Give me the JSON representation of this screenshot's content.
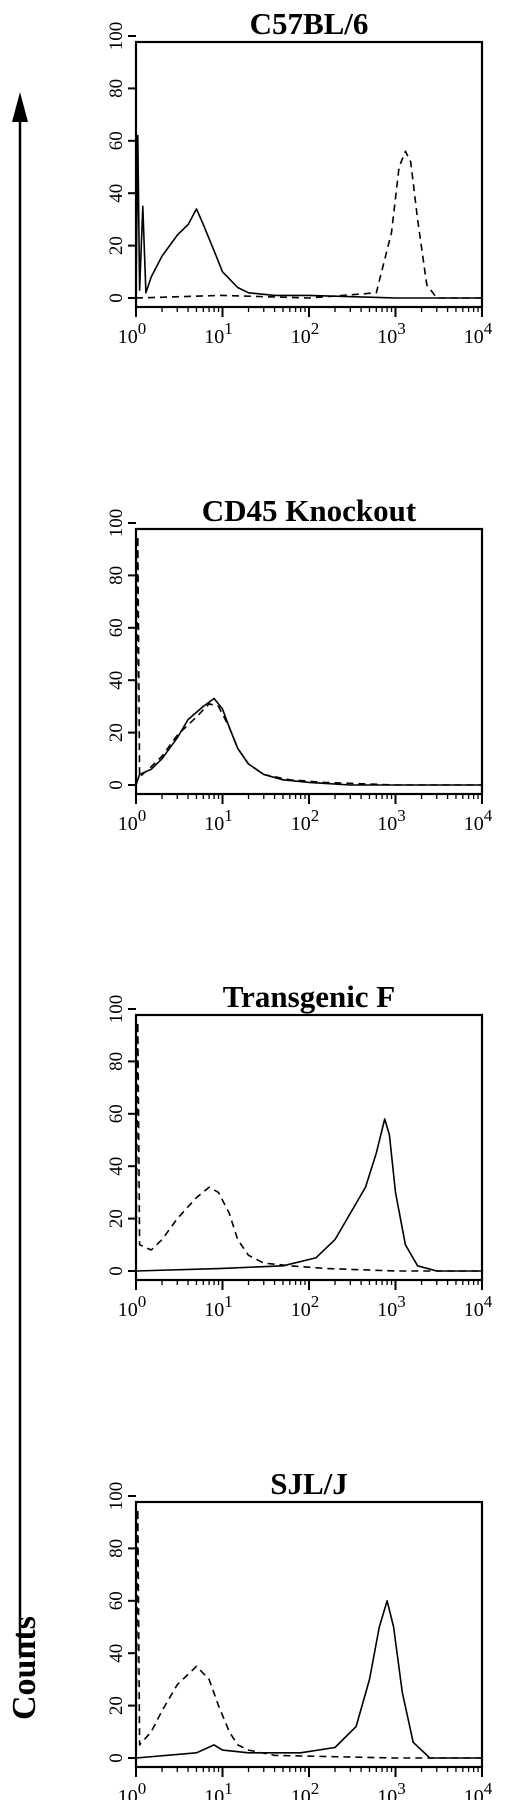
{
  "figure": {
    "ylabel": "Counts"
  },
  "chart_data": [
    {
      "type": "line",
      "title": "C57BL/6",
      "xscale": "log",
      "xlim": [
        1,
        10000
      ],
      "ylim": [
        0,
        100
      ],
      "xticks": [
        {
          "base": "10",
          "exp": "0"
        },
        {
          "base": "10",
          "exp": "1"
        },
        {
          "base": "10",
          "exp": "2"
        },
        {
          "base": "10",
          "exp": "3"
        },
        {
          "base": "10",
          "exp": "4"
        }
      ],
      "yticks": [
        "0",
        "20",
        "40",
        "60",
        "80",
        "100"
      ],
      "series": [
        {
          "style": "solid",
          "points": [
            [
              1,
              0
            ],
            [
              1.05,
              62
            ],
            [
              1.1,
              3
            ],
            [
              1.2,
              35
            ],
            [
              1.3,
              2
            ],
            [
              1.5,
              8
            ],
            [
              2,
              16
            ],
            [
              3,
              24
            ],
            [
              4,
              28
            ],
            [
              5,
              34
            ],
            [
              6,
              28
            ],
            [
              8,
              18
            ],
            [
              10,
              10
            ],
            [
              15,
              4
            ],
            [
              20,
              2
            ],
            [
              40,
              1
            ],
            [
              100,
              1
            ],
            [
              1000,
              0
            ],
            [
              10000,
              0
            ]
          ]
        },
        {
          "style": "dashed",
          "points": [
            [
              1,
              0
            ],
            [
              10,
              1
            ],
            [
              100,
              0
            ],
            [
              600,
              2
            ],
            [
              900,
              25
            ],
            [
              1100,
              50
            ],
            [
              1300,
              56
            ],
            [
              1500,
              52
            ],
            [
              1800,
              30
            ],
            [
              2300,
              5
            ],
            [
              3000,
              0
            ],
            [
              10000,
              0
            ]
          ]
        }
      ]
    },
    {
      "type": "line",
      "title": "CD45 Knockout",
      "xscale": "log",
      "xlim": [
        1,
        10000
      ],
      "ylim": [
        0,
        100
      ],
      "xticks": [
        {
          "base": "10",
          "exp": "0"
        },
        {
          "base": "10",
          "exp": "1"
        },
        {
          "base": "10",
          "exp": "2"
        },
        {
          "base": "10",
          "exp": "3"
        },
        {
          "base": "10",
          "exp": "4"
        }
      ],
      "yticks": [
        "0",
        "20",
        "40",
        "60",
        "80",
        "100"
      ],
      "series": [
        {
          "style": "solid",
          "points": [
            [
              1,
              0
            ],
            [
              1.1,
              4
            ],
            [
              1.5,
              6
            ],
            [
              2,
              10
            ],
            [
              3,
              18
            ],
            [
              4,
              25
            ],
            [
              6,
              30
            ],
            [
              8,
              33
            ],
            [
              10,
              29
            ],
            [
              12,
              22
            ],
            [
              15,
              14
            ],
            [
              20,
              8
            ],
            [
              30,
              4
            ],
            [
              50,
              2
            ],
            [
              100,
              1
            ],
            [
              300,
              0
            ],
            [
              1000,
              0
            ],
            [
              10000,
              0
            ]
          ]
        },
        {
          "style": "dashed",
          "points": [
            [
              1,
              0
            ],
            [
              1.05,
              95
            ],
            [
              1.1,
              3
            ],
            [
              1.5,
              7
            ],
            [
              2,
              11
            ],
            [
              3,
              19
            ],
            [
              5,
              26
            ],
            [
              7,
              31
            ],
            [
              9,
              30
            ],
            [
              12,
              22
            ],
            [
              15,
              14
            ],
            [
              20,
              8
            ],
            [
              30,
              4
            ],
            [
              60,
              2
            ],
            [
              150,
              1
            ],
            [
              1000,
              0
            ],
            [
              10000,
              0
            ]
          ]
        }
      ]
    },
    {
      "type": "line",
      "title": "Transgenic F",
      "xscale": "log",
      "xlim": [
        1,
        10000
      ],
      "ylim": [
        0,
        100
      ],
      "xticks": [
        {
          "base": "10",
          "exp": "0"
        },
        {
          "base": "10",
          "exp": "1"
        },
        {
          "base": "10",
          "exp": "2"
        },
        {
          "base": "10",
          "exp": "3"
        },
        {
          "base": "10",
          "exp": "4"
        }
      ],
      "yticks": [
        "0",
        "20",
        "40",
        "60",
        "80",
        "100"
      ],
      "series": [
        {
          "style": "solid",
          "points": [
            [
              1,
              0
            ],
            [
              10,
              1
            ],
            [
              50,
              2
            ],
            [
              120,
              5
            ],
            [
              200,
              12
            ],
            [
              300,
              22
            ],
            [
              450,
              32
            ],
            [
              600,
              45
            ],
            [
              750,
              58
            ],
            [
              850,
              52
            ],
            [
              1000,
              30
            ],
            [
              1300,
              10
            ],
            [
              1800,
              2
            ],
            [
              3000,
              0
            ],
            [
              10000,
              0
            ]
          ]
        },
        {
          "style": "dashed",
          "points": [
            [
              1,
              0
            ],
            [
              1.05,
              95
            ],
            [
              1.1,
              10
            ],
            [
              1.5,
              8
            ],
            [
              2,
              12
            ],
            [
              3,
              20
            ],
            [
              5,
              28
            ],
            [
              7,
              32
            ],
            [
              9,
              30
            ],
            [
              12,
              22
            ],
            [
              15,
              12
            ],
            [
              20,
              6
            ],
            [
              30,
              3
            ],
            [
              60,
              2
            ],
            [
              150,
              1
            ],
            [
              1000,
              0
            ],
            [
              10000,
              0
            ]
          ]
        }
      ]
    },
    {
      "type": "line",
      "title": "SJL/J",
      "xscale": "log",
      "xlim": [
        1,
        10000
      ],
      "ylim": [
        0,
        100
      ],
      "xticks": [
        {
          "base": "10",
          "exp": "0"
        },
        {
          "base": "10",
          "exp": "1"
        },
        {
          "base": "10",
          "exp": "2"
        },
        {
          "base": "10",
          "exp": "3"
        },
        {
          "base": "10",
          "exp": "4"
        }
      ],
      "yticks": [
        "0",
        "20",
        "40",
        "60",
        "80",
        "100"
      ],
      "series": [
        {
          "style": "solid",
          "points": [
            [
              1,
              0
            ],
            [
              5,
              2
            ],
            [
              8,
              5
            ],
            [
              10,
              3
            ],
            [
              20,
              2
            ],
            [
              80,
              2
            ],
            [
              200,
              4
            ],
            [
              350,
              12
            ],
            [
              500,
              30
            ],
            [
              650,
              50
            ],
            [
              800,
              60
            ],
            [
              950,
              50
            ],
            [
              1200,
              25
            ],
            [
              1600,
              6
            ],
            [
              2500,
              0
            ],
            [
              10000,
              0
            ]
          ]
        },
        {
          "style": "dashed",
          "points": [
            [
              1,
              0
            ],
            [
              1.05,
              95
            ],
            [
              1.1,
              5
            ],
            [
              1.5,
              10
            ],
            [
              2,
              18
            ],
            [
              3,
              28
            ],
            [
              5,
              35
            ],
            [
              7,
              30
            ],
            [
              9,
              20
            ],
            [
              12,
              10
            ],
            [
              15,
              5
            ],
            [
              20,
              3
            ],
            [
              40,
              1
            ],
            [
              1000,
              0
            ],
            [
              10000,
              0
            ]
          ]
        }
      ]
    }
  ]
}
